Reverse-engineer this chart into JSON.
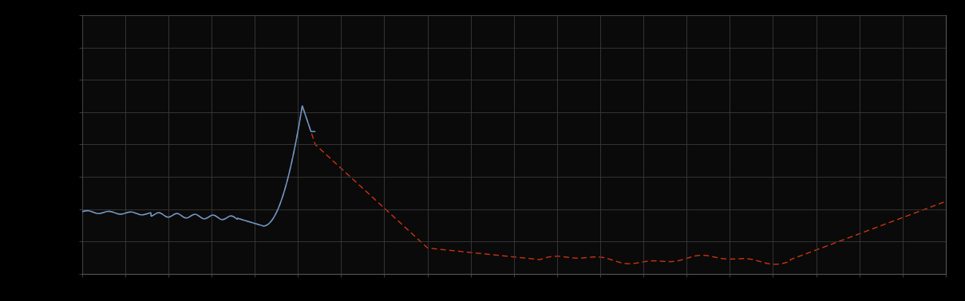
{
  "background_color": "#0a0a0a",
  "plot_bg_color": "#0a0a0a",
  "grid_color": "#3a3a3a",
  "blue_line_color": "#6699cc",
  "red_line_color": "#cc3311",
  "figsize": [
    12.09,
    3.78
  ],
  "dpi": 100,
  "xlim": [
    0,
    100
  ],
  "ylim": [
    0,
    100
  ],
  "n_gridlines_x": 20,
  "n_gridlines_y": 8,
  "border_color": "#555555",
  "outer_bg": "#000000"
}
